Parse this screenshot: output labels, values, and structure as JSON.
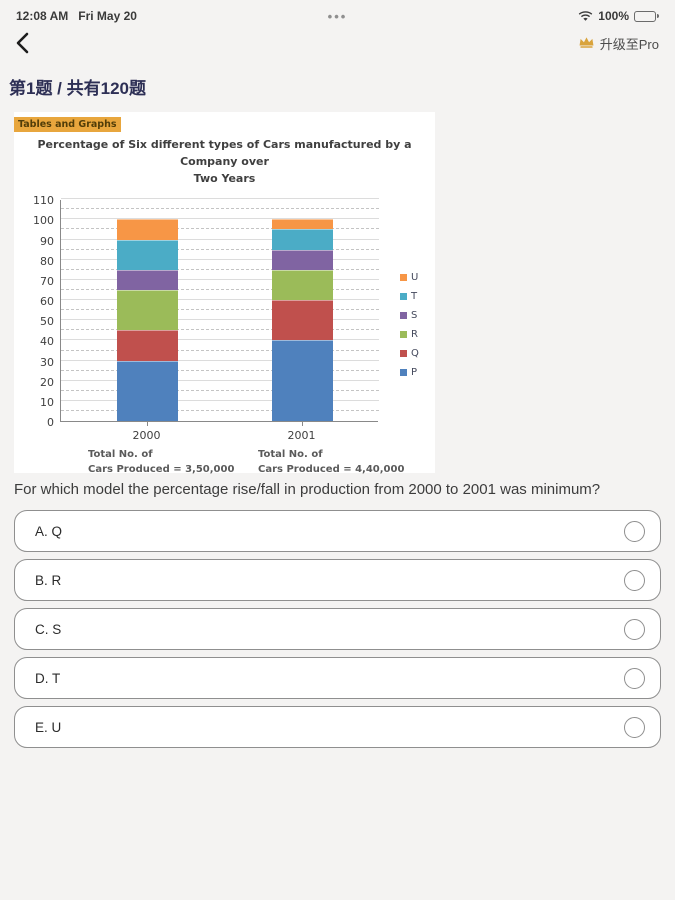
{
  "status_bar": {
    "time": "12:08 AM",
    "date": "Fri May 20",
    "center_dots": "•••",
    "battery_percent": "100%"
  },
  "nav": {
    "upgrade_label": "升级至Pro",
    "crown_color": "#D9A33C"
  },
  "question_header": {
    "text": "第1题 / 共有120题"
  },
  "chart_card": {
    "tag": "Tables and Graphs",
    "title_line1": "Percentage of Six different types of Cars manufactured by a Company over",
    "title_line2": "Two Years"
  },
  "chart_data": {
    "type": "bar",
    "subtype": "stacked-column",
    "title": "Percentage of Six different types of Cars manufactured by a Company over Two Years",
    "categories": [
      "2000",
      "2001"
    ],
    "series": [
      {
        "name": "P",
        "color": "#4F81BD",
        "values": [
          30,
          40
        ]
      },
      {
        "name": "Q",
        "color": "#C0504D",
        "values": [
          15,
          20
        ]
      },
      {
        "name": "R",
        "color": "#9BBB59",
        "values": [
          20,
          15
        ]
      },
      {
        "name": "S",
        "color": "#8064A2",
        "values": [
          10,
          10
        ]
      },
      {
        "name": "T",
        "color": "#4BACC6",
        "values": [
          15,
          10
        ]
      },
      {
        "name": "U",
        "color": "#F79646",
        "values": [
          10,
          5
        ]
      }
    ],
    "legend_order": [
      "U",
      "T",
      "S",
      "R",
      "Q",
      "P"
    ],
    "legend_position": "right",
    "ylim": [
      0,
      110
    ],
    "ytick_step": 10,
    "grid": "solid major every 10, dashed minor every 5",
    "footnotes": [
      {
        "category": "2000",
        "line1": "Total No. of",
        "line2": "Cars Produced = 3,50,000"
      },
      {
        "category": "2001",
        "line1": "Total No. of",
        "line2": "Cars Produced = 4,40,000"
      }
    ]
  },
  "question": {
    "text": "For which model the percentage rise/fall in production from 2000 to 2001 was minimum?"
  },
  "options": [
    {
      "label": "A. Q"
    },
    {
      "label": "B. R"
    },
    {
      "label": "C. S"
    },
    {
      "label": "D. T"
    },
    {
      "label": "E. U"
    }
  ]
}
